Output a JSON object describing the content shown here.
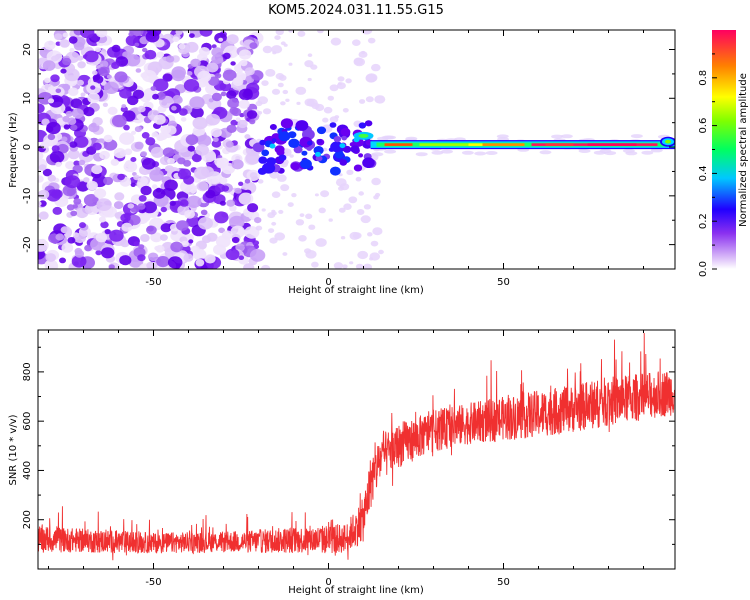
{
  "figure": {
    "title": "KOM5.2024.031.11.55.G15"
  },
  "chart_data": [
    {
      "type": "heatmap",
      "title": "KOM5.2024.031.11.55.G15",
      "xlabel": "Height of straight line (km)",
      "ylabel": "Frequency (Hz)",
      "xlim": [
        -83,
        99
      ],
      "ylim": [
        -25,
        24
      ],
      "xticks": [
        -50,
        0,
        50
      ],
      "yticks": [
        -20,
        -10,
        0,
        10,
        20
      ],
      "colorbar": {
        "label": "Normalized spectral amplitude",
        "range": [
          0.0,
          1.0
        ],
        "ticks": [
          0.0,
          0.2,
          0.4,
          0.6,
          0.8
        ],
        "colormap": [
          "#ffffff",
          "#d8b8f8",
          "#6a00f0",
          "#0000ff",
          "#00e5ff",
          "#00ff00",
          "#ffff00",
          "#ff8000",
          "#ff0060"
        ]
      },
      "description_regions": [
        {
          "x_range": [
            -83,
            -20
          ],
          "freq_range": [
            -25,
            24
          ],
          "amplitude": 0.15,
          "pattern": "scattered noise"
        },
        {
          "x_range": [
            -20,
            12
          ],
          "freq_range": [
            -6,
            6
          ],
          "amplitude": 0.3,
          "pattern": "clustered noise"
        },
        {
          "x_range": [
            12,
            99
          ],
          "freq_center": 0.5,
          "amplitude": 1.0,
          "pattern": "narrow signal line"
        }
      ]
    },
    {
      "type": "line",
      "xlabel": "Height of straight line (km)",
      "ylabel": "SNR (10 * v/v)",
      "xlim": [
        -83,
        99
      ],
      "ylim": [
        0,
        970
      ],
      "xticks": [
        -50,
        0,
        50
      ],
      "yticks": [
        200,
        400,
        600,
        800
      ],
      "color": "#f03030",
      "series": [
        {
          "x": [
            -80,
            -70,
            -60,
            -50,
            -40,
            -30,
            -20,
            -10,
            0,
            5,
            10,
            12,
            15,
            20,
            30,
            40,
            50,
            60,
            70,
            80,
            90,
            99
          ],
          "mean": [
            120,
            115,
            110,
            105,
            108,
            110,
            112,
            118,
            120,
            125,
            200,
            350,
            450,
            500,
            560,
            590,
            610,
            630,
            650,
            680,
            700,
            720
          ],
          "spread": [
            90,
            80,
            80,
            70,
            70,
            70,
            80,
            90,
            100,
            100,
            150,
            180,
            160,
            150,
            140,
            140,
            150,
            160,
            160,
            170,
            160,
            160
          ]
        }
      ]
    }
  ]
}
